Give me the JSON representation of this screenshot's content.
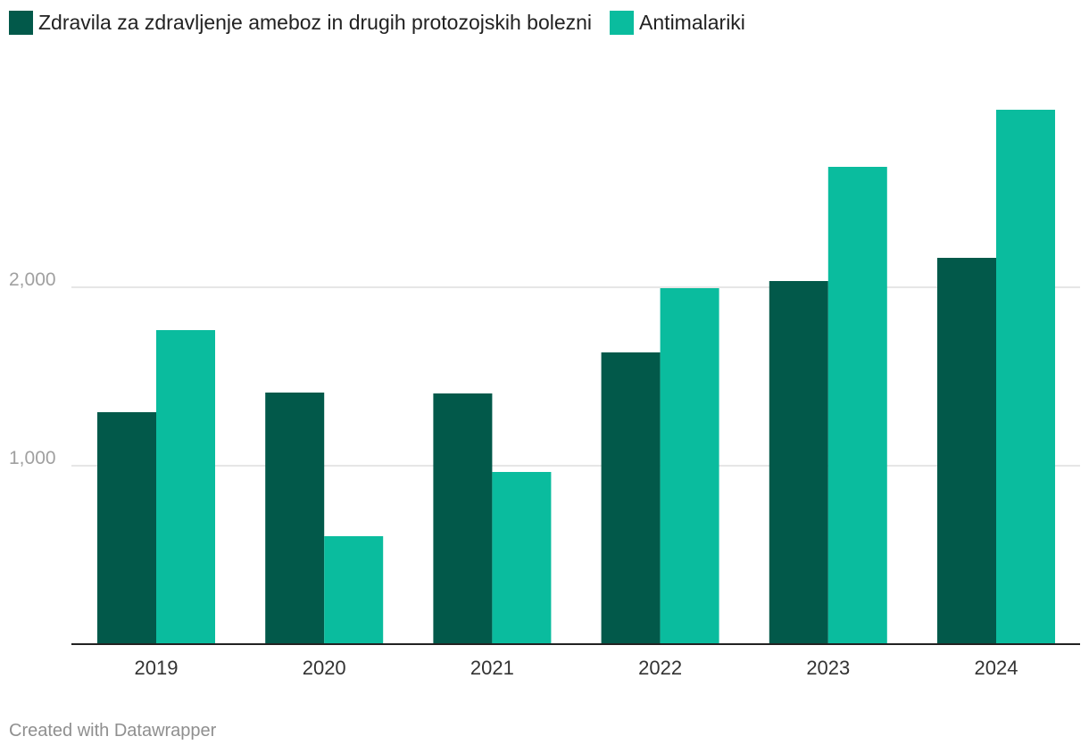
{
  "chart_data": {
    "type": "bar",
    "title": "",
    "xlabel": "",
    "ylabel": "",
    "categories": [
      "2019",
      "2020",
      "2021",
      "2022",
      "2023",
      "2024"
    ],
    "series": [
      {
        "name": "Zdravila za zdravljenje ameboz in drugih protozojskih bolezni",
        "color": "#02594a",
        "values": [
          1300,
          1410,
          1405,
          1635,
          2035,
          2165
        ]
      },
      {
        "name": "Antimalariki",
        "color": "#0abc9e",
        "values": [
          1760,
          605,
          965,
          1995,
          2675,
          2995
        ]
      }
    ],
    "ylim": [
      0,
      3000
    ],
    "yticks": [
      {
        "value": 1000,
        "label": "1,000"
      },
      {
        "value": 2000,
        "label": "2,000"
      }
    ],
    "grid": true,
    "legend_position": "top-left"
  },
  "footer": {
    "credit": "Created with Datawrapper"
  }
}
